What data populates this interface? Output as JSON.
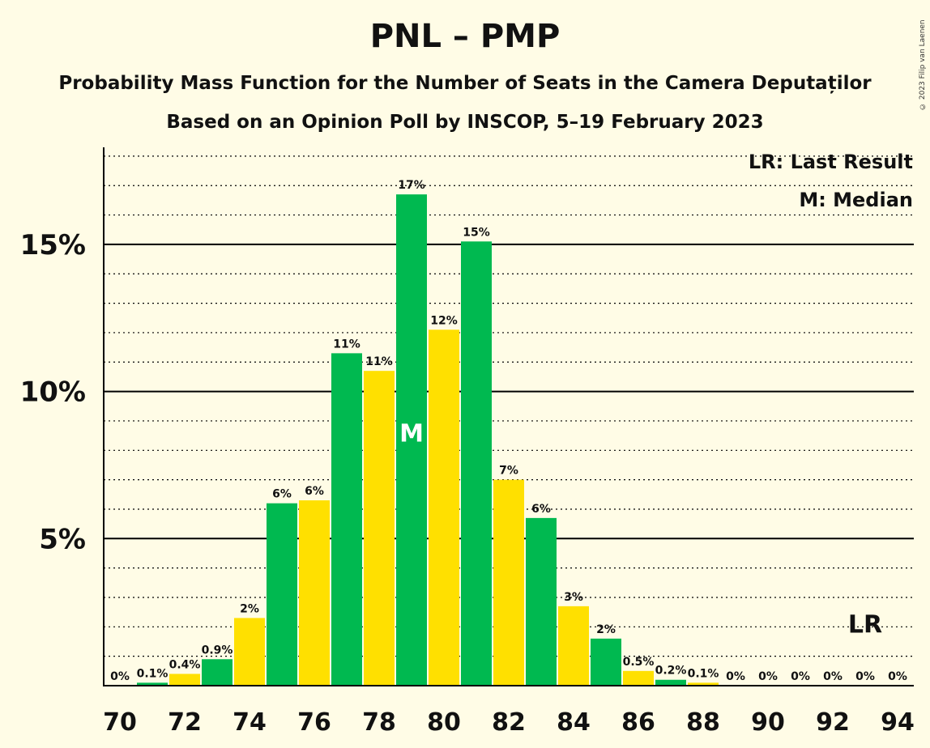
{
  "title": "PNL – PMP",
  "subtitle1": "Probability Mass Function for the Number of Seats in the Camera Deputaților",
  "subtitle2": "Based on an Opinion Poll by INSCOP, 5–19 February 2023",
  "copyright": "© 2023 Filip van Laenen",
  "colors": {
    "green": "#00b950",
    "yellow": "#ffe000",
    "background": "#fffce6",
    "axis": "#000000"
  },
  "chart_data": {
    "type": "bar",
    "x": [
      70,
      71,
      72,
      73,
      74,
      75,
      76,
      77,
      78,
      79,
      80,
      81,
      82,
      83,
      84,
      85,
      86,
      87,
      88,
      89,
      90,
      91,
      92,
      93,
      94
    ],
    "values": [
      0,
      0.1,
      0.4,
      0.9,
      2.3,
      6.2,
      6.3,
      11.3,
      10.7,
      16.7,
      12.1,
      15.1,
      7.0,
      5.7,
      2.7,
      1.6,
      0.5,
      0.2,
      0.1,
      0,
      0,
      0,
      0,
      0,
      0
    ],
    "labels": [
      "0%",
      "0.1%",
      "0.4%",
      "0.9%",
      "2%",
      "6%",
      "6%",
      "11%",
      "11%",
      "17%",
      "12%",
      "15%",
      "7%",
      "6%",
      "3%",
      "2%",
      "0.5%",
      "0.2%",
      "0.1%",
      "0%",
      "0%",
      "0%",
      "0%",
      "0%",
      "0%"
    ],
    "x_tick_labels": [
      "70",
      "72",
      "74",
      "76",
      "78",
      "80",
      "82",
      "84",
      "86",
      "88",
      "90",
      "92",
      "94"
    ],
    "y_tick_labels": [
      "5%",
      "10%",
      "15%"
    ],
    "ylim": [
      0,
      18.3
    ],
    "grid": "dotted every 1%, solid every 5%",
    "median": 79,
    "median_marker": "M",
    "last_result": 93,
    "last_result_marker": "LR",
    "legend": [
      "LR: Last Result",
      "M: Median"
    ],
    "legend_position": "top-right"
  }
}
